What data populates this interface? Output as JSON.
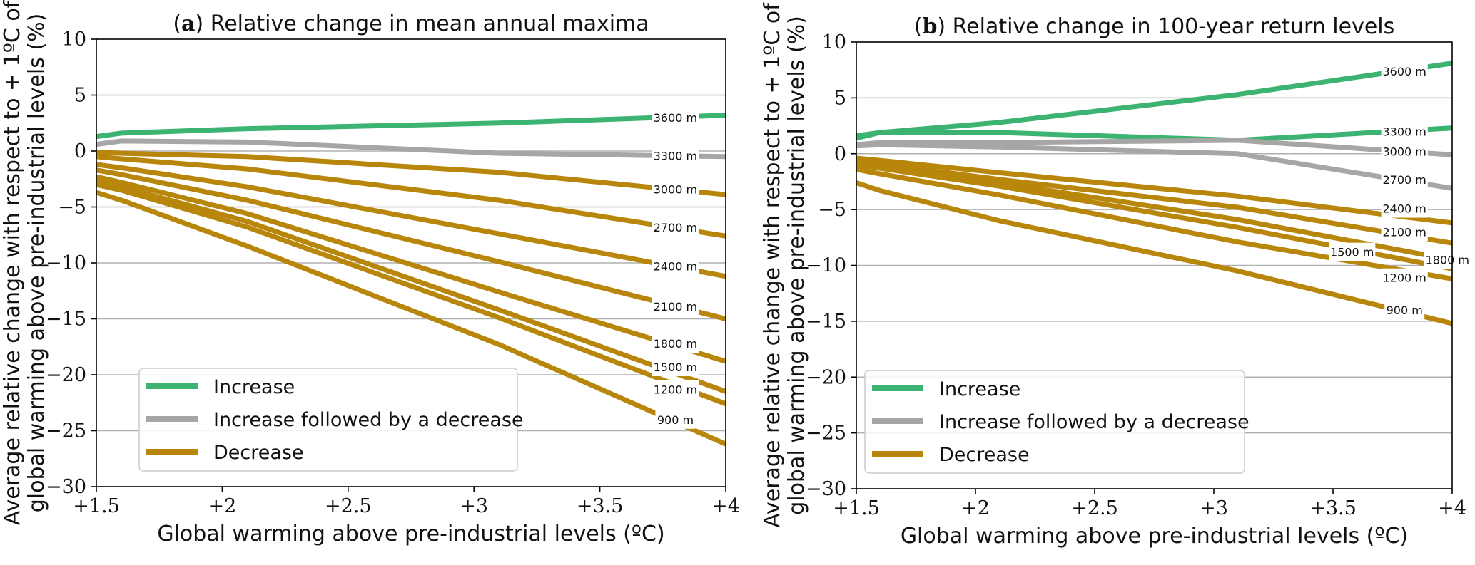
{
  "colors": {
    "increase": "#3cb371",
    "increase_decrease": "#a6a6a6",
    "decrease": "#b8860b"
  },
  "chart_data": [
    {
      "type": "line",
      "panel": "a",
      "title_letter": "a",
      "title": "Relative change in mean annual maxima",
      "xlabel": "Global warming above pre-industrial levels (ºC)",
      "ylabel_line1": "Average relative change with respect to + 1ºC of",
      "ylabel_line2": "global warming above pre-industrial levels (%)",
      "xlim": [
        1.5,
        4
      ],
      "ylim": [
        -30,
        10
      ],
      "x_ticks": [
        1.5,
        2,
        2.5,
        3,
        3.5,
        4
      ],
      "x_tick_labels": [
        "+1.5",
        "+2",
        "+2.5",
        "+3",
        "+3.5",
        "+4"
      ],
      "y_ticks": [
        -30,
        -25,
        -20,
        -15,
        -10,
        -5,
        0,
        5,
        10
      ],
      "y_tick_labels": [
        "−30",
        "−25",
        "−20",
        "−15",
        "−10",
        "−5",
        "0",
        "5",
        "10"
      ],
      "grid_y": true,
      "legend": {
        "position": "lower-left",
        "entries": [
          {
            "label": "Increase",
            "category": "increase"
          },
          {
            "label": "Increase followed by a decrease",
            "category": "increase_decrease"
          },
          {
            "label": "Decrease",
            "category": "decrease"
          }
        ]
      },
      "series": [
        {
          "label": "3600 m",
          "category": "increase",
          "x": [
            1.5,
            1.6,
            2.1,
            3.1,
            4.0
          ],
          "y": [
            1.3,
            1.6,
            2.0,
            2.5,
            3.2
          ],
          "label_at": [
            3.8,
            3.0
          ]
        },
        {
          "label": "3300 m",
          "category": "increase_decrease",
          "x": [
            1.5,
            1.6,
            2.1,
            3.1,
            4.0
          ],
          "y": [
            0.6,
            0.9,
            0.8,
            -0.2,
            -0.5
          ],
          "label_at": [
            3.8,
            -0.4
          ]
        },
        {
          "label": "3000 m",
          "category": "decrease",
          "x": [
            1.5,
            1.6,
            2.1,
            3.1,
            4.0
          ],
          "y": [
            -0.1,
            -0.2,
            -0.5,
            -1.9,
            -3.9
          ],
          "label_at": [
            3.8,
            -3.4
          ]
        },
        {
          "label": "2700 m",
          "category": "decrease",
          "x": [
            1.5,
            1.6,
            2.1,
            3.1,
            4.0
          ],
          "y": [
            -0.5,
            -0.7,
            -1.6,
            -4.4,
            -7.6
          ],
          "label_at": [
            3.8,
            -6.8
          ]
        },
        {
          "label": "2400 m",
          "category": "decrease",
          "x": [
            1.5,
            1.6,
            2.1,
            3.1,
            4.0
          ],
          "y": [
            -1.2,
            -1.5,
            -3.2,
            -7.4,
            -11.2
          ],
          "label_at": [
            3.8,
            -10.3
          ]
        },
        {
          "label": "2100 m",
          "category": "decrease",
          "x": [
            1.5,
            1.6,
            2.1,
            3.1,
            4.0
          ],
          "y": [
            -1.7,
            -2.1,
            -4.4,
            -9.9,
            -15.0
          ],
          "label_at": [
            3.8,
            -13.9
          ]
        },
        {
          "label": "1800 m",
          "category": "decrease",
          "x": [
            1.5,
            1.6,
            2.1,
            3.1,
            4.0
          ],
          "y": [
            -2.3,
            -2.8,
            -5.6,
            -12.6,
            -18.8
          ],
          "label_at": [
            3.8,
            -17.2
          ]
        },
        {
          "label": "1500 m",
          "category": "decrease",
          "x": [
            1.5,
            1.6,
            2.1,
            3.1,
            4.0
          ],
          "y": [
            -2.7,
            -3.2,
            -6.3,
            -14.2,
            -21.5
          ],
          "label_at": [
            3.8,
            -19.3
          ]
        },
        {
          "label": "1200 m",
          "category": "decrease",
          "x": [
            1.5,
            1.6,
            2.1,
            3.1,
            4.0
          ],
          "y": [
            -3.0,
            -3.5,
            -6.8,
            -14.9,
            -22.6
          ],
          "label_at": [
            3.8,
            -21.3
          ]
        },
        {
          "label": "900 m",
          "category": "decrease",
          "x": [
            1.5,
            1.6,
            2.1,
            3.1,
            4.0
          ],
          "y": [
            -3.7,
            -4.4,
            -8.5,
            -17.3,
            -26.2
          ],
          "label_at": [
            3.8,
            -24.0
          ]
        }
      ]
    },
    {
      "type": "line",
      "panel": "b",
      "title_letter": "b",
      "title": "Relative change in 100-year return levels",
      "xlabel": "Global warming above pre-industrial levels (ºC)",
      "ylabel_line1": "Average relative change with respect to + 1ºC of",
      "ylabel_line2": "global warming above pre-industrial levels (%)",
      "xlim": [
        1.5,
        4
      ],
      "ylim": [
        -30,
        10
      ],
      "x_ticks": [
        1.5,
        2,
        2.5,
        3,
        3.5,
        4
      ],
      "x_tick_labels": [
        "+1.5",
        "+2",
        "+2.5",
        "+3",
        "+3.5",
        "+4"
      ],
      "y_ticks": [
        -30,
        -25,
        -20,
        -15,
        -10,
        -5,
        0,
        5,
        10
      ],
      "y_tick_labels": [
        "−30",
        "−25",
        "−20",
        "−15",
        "−10",
        "−5",
        "0",
        "5",
        "10"
      ],
      "grid_y": true,
      "legend": {
        "position": "lower-left",
        "entries": [
          {
            "label": "Increase",
            "category": "increase"
          },
          {
            "label": "Increase followed by a decrease",
            "category": "increase_decrease"
          },
          {
            "label": "Decrease",
            "category": "decrease"
          }
        ]
      },
      "series": [
        {
          "label": "3600 m",
          "category": "increase",
          "x": [
            1.5,
            1.6,
            2.1,
            3.1,
            4.0
          ],
          "y": [
            1.4,
            1.9,
            2.8,
            5.3,
            8.1
          ],
          "label_at": [
            3.8,
            7.4
          ]
        },
        {
          "label": "3300 m",
          "category": "increase",
          "x": [
            1.5,
            1.6,
            2.1,
            3.1,
            4.0
          ],
          "y": [
            1.6,
            1.9,
            1.9,
            1.2,
            2.3
          ],
          "label_at": [
            3.8,
            2.0
          ]
        },
        {
          "label": "3000 m",
          "category": "increase_decrease",
          "x": [
            1.5,
            1.6,
            2.1,
            3.1,
            4.0
          ],
          "y": [
            0.8,
            1.0,
            1.0,
            1.2,
            -0.1
          ],
          "label_at": [
            3.8,
            0.2
          ]
        },
        {
          "label": "2700 m",
          "category": "increase_decrease",
          "x": [
            1.5,
            1.6,
            2.1,
            3.1,
            4.0
          ],
          "y": [
            0.7,
            0.8,
            0.6,
            0.0,
            -3.1
          ],
          "label_at": [
            3.8,
            -2.3
          ]
        },
        {
          "label": "2400 m",
          "category": "decrease",
          "x": [
            1.5,
            1.6,
            2.1,
            3.1,
            4.0
          ],
          "y": [
            -0.4,
            -0.6,
            -1.7,
            -3.8,
            -6.2
          ],
          "label_at": [
            3.8,
            -4.9
          ]
        },
        {
          "label": "2100 m",
          "category": "decrease",
          "x": [
            1.5,
            1.6,
            2.1,
            3.1,
            4.0
          ],
          "y": [
            -0.6,
            -0.9,
            -2.3,
            -4.8,
            -8.0
          ],
          "label_at": [
            3.8,
            -7.0
          ]
        },
        {
          "label": "1800 m",
          "category": "decrease",
          "x": [
            1.5,
            1.6,
            2.1,
            3.1,
            4.0
          ],
          "y": [
            -0.8,
            -1.1,
            -2.6,
            -5.9,
            -9.5
          ],
          "label_at": [
            3.98,
            -9.5
          ]
        },
        {
          "label": "1500 m",
          "category": "decrease",
          "x": [
            1.5,
            1.6,
            2.1,
            3.1,
            4.0
          ],
          "y": [
            -1.0,
            -1.3,
            -2.9,
            -6.6,
            -10.3
          ],
          "label_at": [
            3.58,
            -8.8
          ]
        },
        {
          "label": "1200 m",
          "category": "decrease",
          "x": [
            1.5,
            1.6,
            2.1,
            3.1,
            4.0
          ],
          "y": [
            -1.4,
            -1.8,
            -3.7,
            -7.9,
            -11.2
          ],
          "label_at": [
            3.8,
            -11.1
          ]
        },
        {
          "label": "900 m",
          "category": "decrease",
          "x": [
            1.5,
            1.6,
            2.1,
            3.1,
            4.0
          ],
          "y": [
            -2.6,
            -3.3,
            -6.0,
            -10.5,
            -15.2
          ],
          "label_at": [
            3.8,
            -14.0
          ]
        }
      ]
    }
  ]
}
